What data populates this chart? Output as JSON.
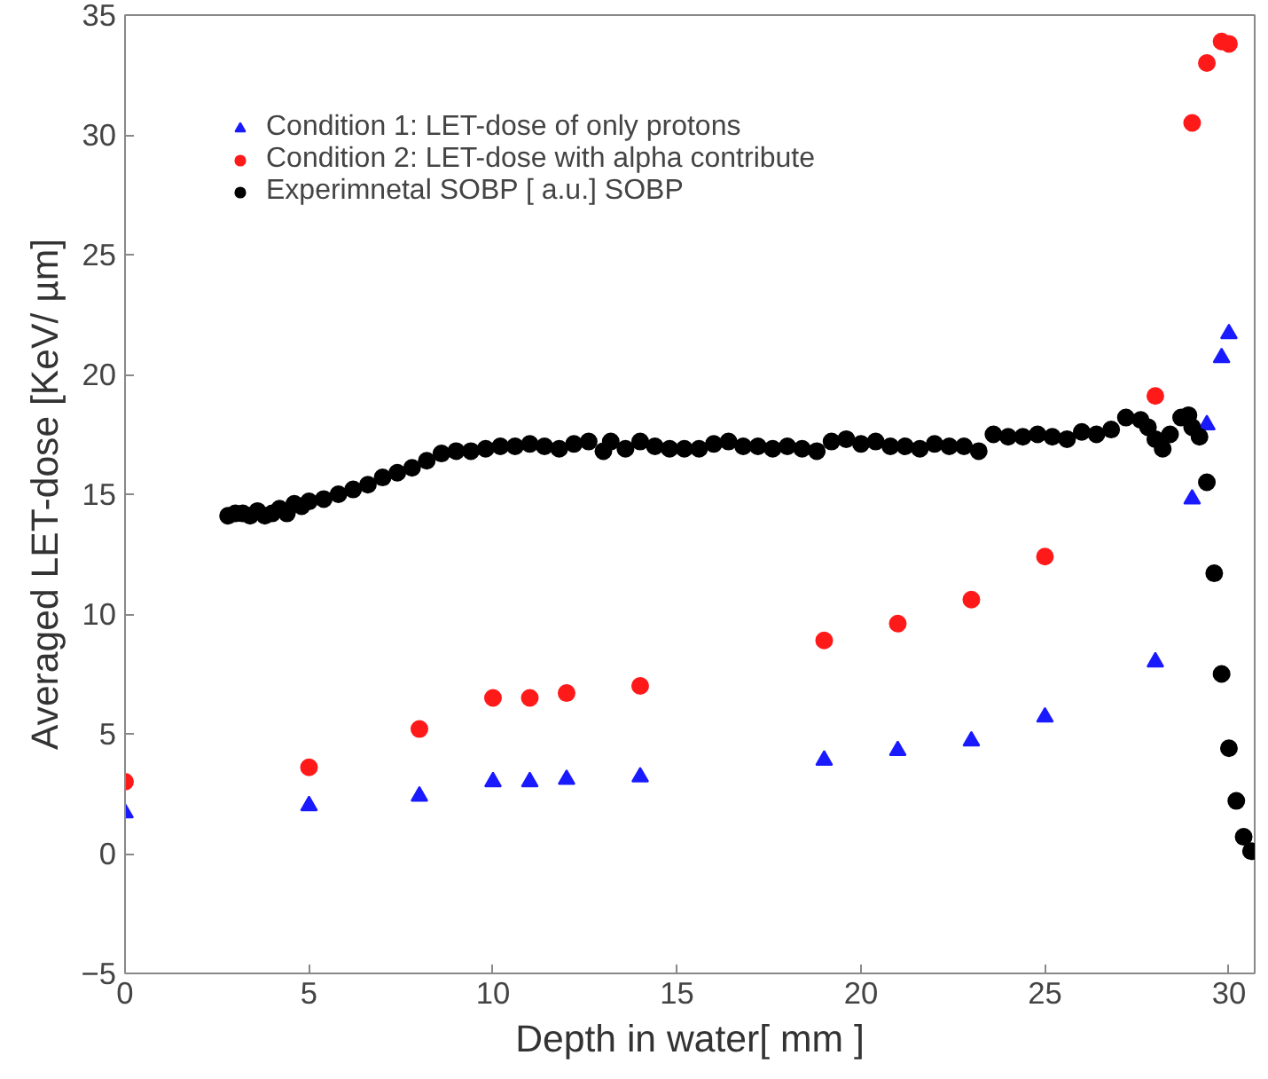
{
  "chart_data": {
    "type": "scatter",
    "xlabel": "Depth in water[ mm ]",
    "ylabel": "Averaged LET-dose [KeV/ µm]",
    "xlim": [
      0,
      30.7
    ],
    "ylim": [
      -5,
      35
    ],
    "xticks": [
      0,
      5,
      10,
      15,
      20,
      25,
      30
    ],
    "yticks": [
      -5,
      0,
      5,
      10,
      15,
      20,
      25,
      30,
      35
    ],
    "grid": false,
    "legend": "top left",
    "series": [
      {
        "name": "Condition 1: LET-dose of only protons",
        "color": "#1a1aff",
        "marker": "triangle",
        "x": [
          0,
          5,
          8,
          10,
          11,
          12,
          14,
          19,
          21,
          23,
          25,
          28,
          29,
          29.4,
          29.8,
          30
        ],
        "values": [
          1.7,
          2.0,
          2.4,
          3.0,
          3.0,
          3.1,
          3.2,
          3.9,
          4.3,
          4.7,
          5.7,
          8.0,
          14.8,
          17.9,
          20.7,
          21.7
        ]
      },
      {
        "name": "Condition 2: LET-dose with alpha contribute",
        "color": "#ff1a1a",
        "marker": "circle",
        "x": [
          0,
          5,
          8,
          10,
          11,
          12,
          14,
          19,
          21,
          23,
          25,
          28,
          29,
          29.4,
          29.8,
          30
        ],
        "values": [
          3.0,
          3.6,
          5.2,
          6.5,
          6.5,
          6.7,
          7.0,
          8.9,
          9.6,
          10.6,
          12.4,
          19.1,
          30.5,
          33.0,
          33.9,
          33.8
        ]
      },
      {
        "name": "Experimnetal SOBP [ a.u.] SOBP",
        "color": "#000000",
        "marker": "circle",
        "x": [
          2.8,
          3.0,
          3.2,
          3.4,
          3.6,
          3.8,
          4.0,
          4.2,
          4.4,
          4.6,
          4.8,
          5.0,
          5.4,
          5.8,
          6.2,
          6.6,
          7.0,
          7.4,
          7.8,
          8.2,
          8.6,
          9.0,
          9.4,
          9.8,
          10.2,
          10.6,
          11.0,
          11.4,
          11.8,
          12.2,
          12.6,
          13.0,
          13.2,
          13.6,
          14.0,
          14.4,
          14.8,
          15.2,
          15.6,
          16.0,
          16.4,
          16.8,
          17.2,
          17.6,
          18.0,
          18.4,
          18.8,
          19.2,
          19.6,
          20.0,
          20.4,
          20.8,
          21.2,
          21.6,
          22.0,
          22.4,
          22.8,
          23.2,
          23.6,
          24.0,
          24.4,
          24.8,
          25.2,
          25.6,
          26.0,
          26.4,
          26.8,
          27.2,
          27.6,
          27.8,
          28.0,
          28.2,
          28.4,
          28.7,
          28.9,
          29.0,
          29.2,
          29.4,
          29.6,
          29.8,
          30.0,
          30.2,
          30.4,
          30.6
        ],
        "values": [
          14.1,
          14.2,
          14.2,
          14.1,
          14.3,
          14.1,
          14.2,
          14.4,
          14.2,
          14.6,
          14.5,
          14.7,
          14.8,
          15.0,
          15.2,
          15.4,
          15.7,
          15.9,
          16.1,
          16.4,
          16.7,
          16.8,
          16.8,
          16.9,
          17.0,
          17.0,
          17.1,
          17.0,
          16.9,
          17.1,
          17.2,
          16.8,
          17.2,
          16.9,
          17.2,
          17.0,
          16.9,
          16.9,
          16.9,
          17.1,
          17.2,
          17.0,
          17.0,
          16.9,
          17.0,
          16.9,
          16.8,
          17.2,
          17.3,
          17.1,
          17.2,
          17.0,
          17.0,
          16.9,
          17.1,
          17.0,
          17.0,
          16.8,
          17.5,
          17.4,
          17.4,
          17.5,
          17.4,
          17.3,
          17.6,
          17.5,
          17.7,
          18.2,
          18.1,
          17.8,
          17.3,
          16.9,
          17.5,
          18.2,
          18.3,
          17.8,
          17.4,
          15.5,
          11.7,
          7.5,
          4.4,
          2.2,
          0.7,
          0.1
        ]
      }
    ]
  }
}
